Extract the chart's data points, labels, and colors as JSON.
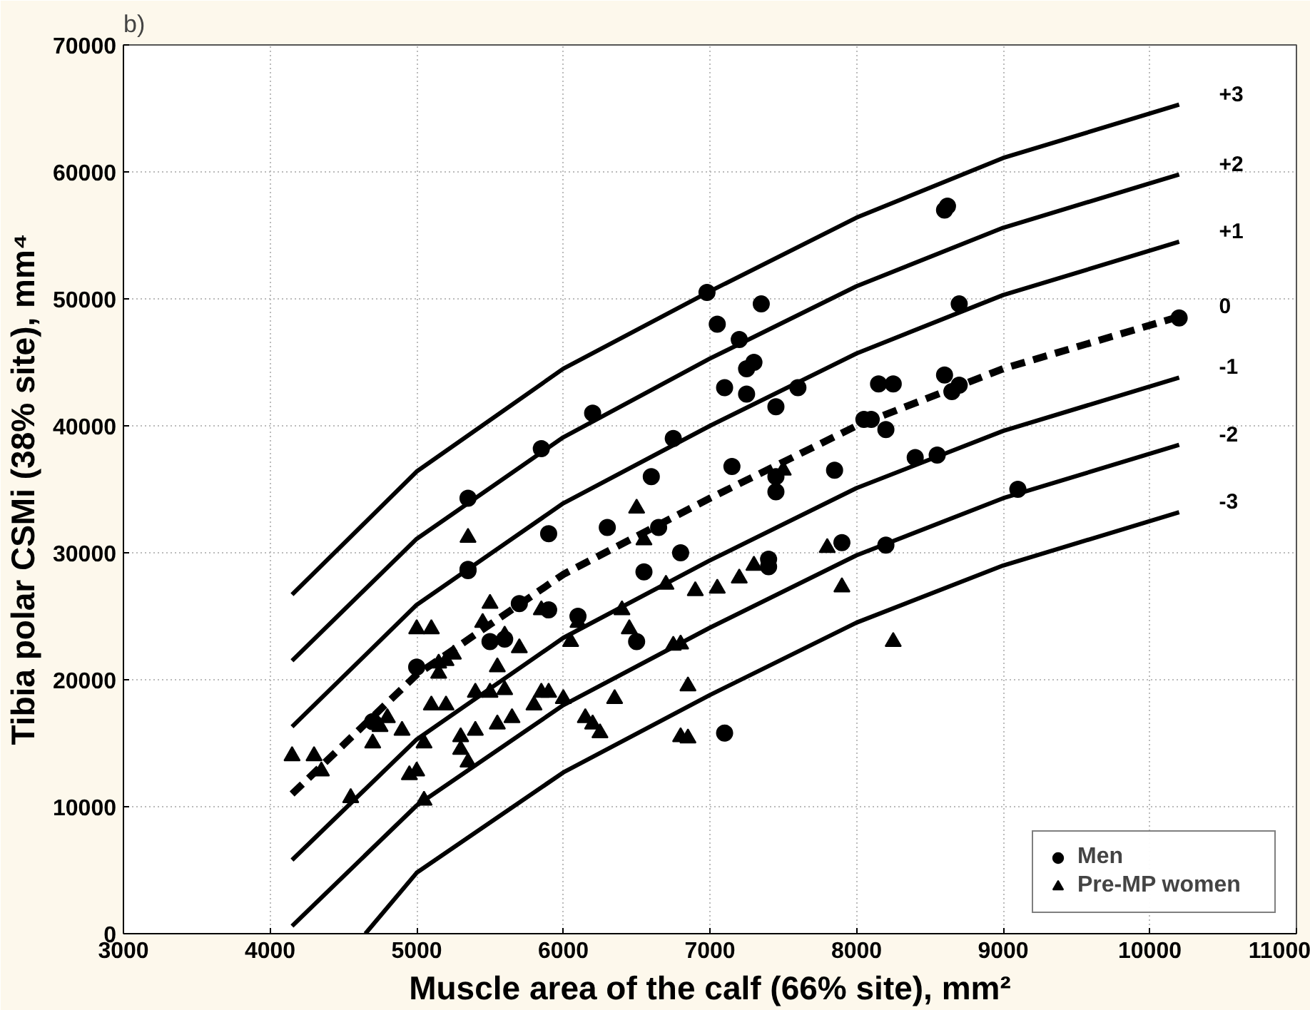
{
  "chart_data": {
    "type": "scatter",
    "title": "b)",
    "xlabel": "Muscle area of the calf (66% site), mm²",
    "ylabel": "Tibia polar CSMi (38% site), mm⁴",
    "xlim": [
      3000,
      11000
    ],
    "xticks": [
      3000,
      4000,
      5000,
      6000,
      7000,
      8000,
      9000,
      10000,
      11000
    ],
    "ylim": [
      0,
      70000
    ],
    "yticks": [
      0,
      10000,
      20000,
      30000,
      40000,
      50000,
      60000,
      70000
    ],
    "grid": true,
    "legend": "bottom right",
    "series": [
      {
        "name": "Men",
        "marker": "circle",
        "color": "#000000",
        "x": [
          5350,
          5350,
          5350,
          5850,
          5900,
          6200,
          6100,
          6300,
          5700,
          5900,
          6500,
          6550,
          6600,
          6650,
          6750,
          6800,
          6980,
          7050,
          7100,
          7100,
          7150,
          7200,
          7250,
          7300,
          7250,
          7350,
          7400,
          7400,
          7450,
          7450,
          7450,
          7600,
          7850,
          7900,
          8050,
          8100,
          8150,
          8200,
          8200,
          8250,
          8400,
          8550,
          8600,
          8620,
          8600,
          8650,
          8700,
          8700,
          9100,
          10200,
          4700,
          5500,
          5600,
          5000
        ],
        "values": [
          34300,
          28700,
          28600,
          38200,
          31500,
          41000,
          25000,
          32000,
          26000,
          25500,
          23000,
          28500,
          36000,
          32000,
          39000,
          30000,
          50500,
          48000,
          43000,
          15800,
          36800,
          46800,
          44500,
          45000,
          42500,
          49600,
          29500,
          28900,
          41500,
          36000,
          34800,
          43000,
          36500,
          30800,
          40500,
          40500,
          43300,
          39700,
          30600,
          43300,
          37500,
          37700,
          57000,
          57300,
          44000,
          42700,
          49600,
          43200,
          35000,
          48500,
          16700,
          23000,
          23200,
          21000
        ]
      },
      {
        "name": "Pre-MP women",
        "marker": "triangle",
        "color": "#000000",
        "x": [
          4150,
          4300,
          4350,
          4550,
          4700,
          4750,
          4800,
          4900,
          4950,
          5000,
          5000,
          5050,
          5050,
          5100,
          5100,
          5150,
          5150,
          5200,
          5200,
          5250,
          5300,
          5300,
          5350,
          5350,
          5400,
          5400,
          5450,
          5500,
          5500,
          5550,
          5600,
          5650,
          5700,
          5800,
          5850,
          5850,
          5900,
          6000,
          6050,
          6100,
          6150,
          6200,
          6250,
          6350,
          6400,
          6450,
          6500,
          6550,
          6700,
          6750,
          6800,
          6800,
          6850,
          6850,
          6900,
          7050,
          7200,
          7300,
          7500,
          7800,
          7900,
          8250,
          5550,
          5600
        ],
        "values": [
          14000,
          14000,
          12800,
          10700,
          15000,
          16300,
          17000,
          16000,
          12500,
          24000,
          12800,
          10500,
          15000,
          18000,
          24000,
          21300,
          20500,
          21500,
          18000,
          22000,
          15500,
          14500,
          13500,
          31200,
          16000,
          19000,
          24500,
          26000,
          19000,
          21000,
          23500,
          17000,
          22500,
          18000,
          25500,
          19000,
          19000,
          18500,
          23000,
          24500,
          17000,
          16500,
          15800,
          18500,
          25500,
          24000,
          33500,
          31000,
          27500,
          22700,
          22800,
          15500,
          19500,
          15400,
          27000,
          27200,
          28000,
          29000,
          36500,
          30400,
          27300,
          23000,
          16500,
          19200
        ]
      },
      {
        "name": "+3",
        "type": "line",
        "line_style": "solid",
        "color": "#000000",
        "x": [
          4150,
          5000,
          6000,
          7000,
          8000,
          9000,
          10200
        ],
        "values": [
          26700,
          36400,
          44500,
          50600,
          56400,
          61100,
          65300
        ]
      },
      {
        "name": "+2",
        "type": "line",
        "line_style": "solid",
        "color": "#000000",
        "x": [
          4150,
          5000,
          6000,
          7000,
          8000,
          9000,
          10200
        ],
        "values": [
          21500,
          31100,
          39100,
          45300,
          51000,
          55600,
          59800
        ]
      },
      {
        "name": "+1",
        "type": "line",
        "line_style": "solid",
        "color": "#000000",
        "x": [
          4150,
          5000,
          6000,
          7000,
          8000,
          9000,
          10200
        ],
        "values": [
          16300,
          25900,
          33900,
          40000,
          45700,
          50300,
          54500
        ]
      },
      {
        "name": "0",
        "type": "line",
        "line_style": "dashed",
        "color": "#000000",
        "x": [
          4150,
          5000,
          6000,
          7000,
          8000,
          9000,
          10200
        ],
        "values": [
          11000,
          20400,
          28300,
          34300,
          40000,
          44500,
          48600
        ]
      },
      {
        "name": "-1",
        "type": "line",
        "line_style": "solid",
        "color": "#000000",
        "x": [
          4150,
          5000,
          6000,
          7000,
          8000,
          9000,
          10200
        ],
        "values": [
          5800,
          15300,
          23300,
          29400,
          35100,
          39600,
          43800
        ]
      },
      {
        "name": "-2",
        "type": "line",
        "line_style": "solid",
        "color": "#000000",
        "x": [
          4150,
          5000,
          6000,
          7000,
          8000,
          9000,
          10200
        ],
        "values": [
          600,
          10100,
          18000,
          24100,
          29800,
          34300,
          38500
        ]
      },
      {
        "name": "-3",
        "type": "line",
        "line_style": "solid",
        "color": "#000000",
        "x": [
          4650,
          5000,
          6000,
          7000,
          8000,
          9000,
          10200
        ],
        "values": [
          0,
          4800,
          12700,
          18800,
          24500,
          29000,
          33200
        ]
      }
    ]
  }
}
